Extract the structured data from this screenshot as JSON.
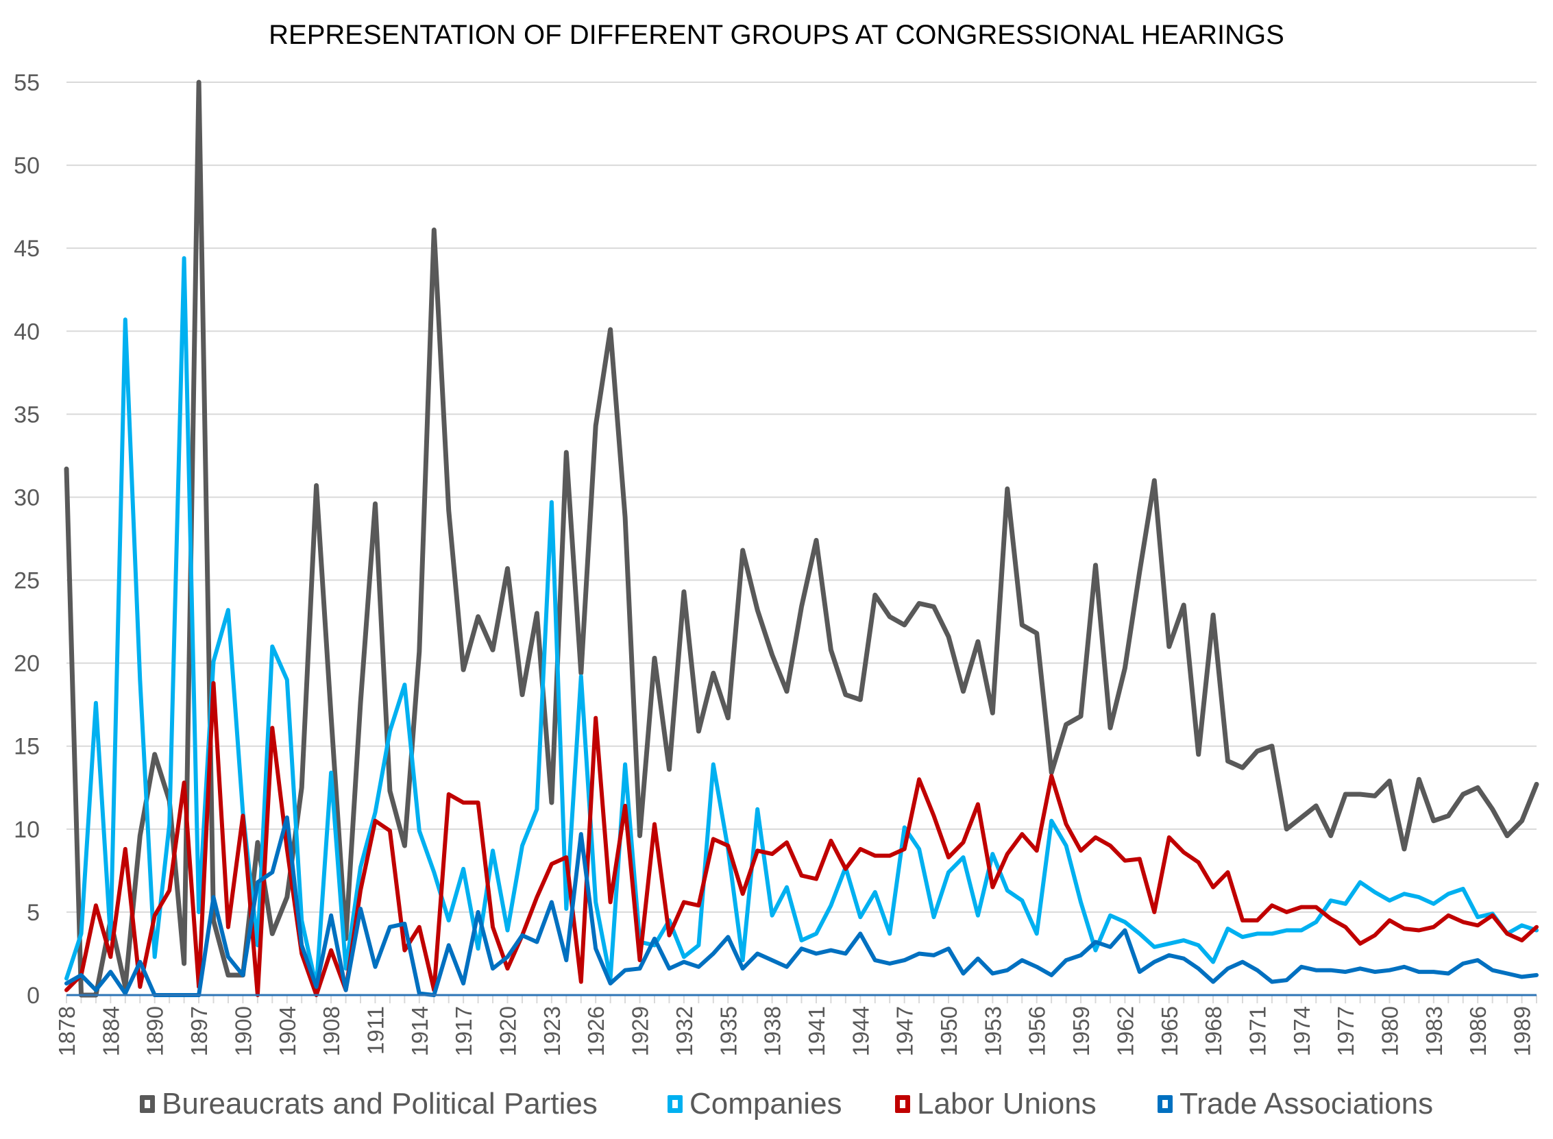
{
  "chart_data": {
    "type": "line",
    "title": "REPRESENTATION OF DIFFERENT GROUPS AT CONGRESSIONAL HEARINGS",
    "xlabel": "",
    "ylabel": "",
    "ylim": [
      0,
      55
    ],
    "y_ticks": [
      0,
      5,
      10,
      15,
      20,
      25,
      30,
      35,
      40,
      45,
      50,
      55
    ],
    "grid": true,
    "legend_position": "bottom",
    "x_tick_labels": [
      "1878",
      "1884",
      "1890",
      "1897",
      "1900",
      "1904",
      "1908",
      "1911",
      "1914",
      "1917",
      "1920",
      "1923",
      "1926",
      "1929",
      "1932",
      "1935",
      "1938",
      "1941",
      "1944",
      "1947",
      "1950",
      "1953",
      "1956",
      "1959",
      "1962",
      "1965",
      "1968",
      "1971",
      "1974",
      "1977",
      "1980",
      "1983",
      "1986",
      "1989"
    ],
    "series": [
      {
        "name": "Bureaucrats and Political Parties",
        "color": "#595959",
        "values": [
          31.7,
          0,
          0,
          4.5,
          0.5,
          9.6,
          14.5,
          11.7,
          1.9,
          55,
          4.5,
          1.2,
          1.2,
          9.2,
          3.7,
          5.9,
          12.5,
          30.7,
          16.8,
          3.4,
          17.6,
          29.6,
          12.3,
          9.0,
          20.7,
          46.1,
          29.2,
          19.6,
          22.8,
          20.8,
          25.7,
          18.1,
          23.0,
          11.6,
          32.7,
          19.4,
          34.3,
          40.1,
          28.8,
          9.6,
          20.3,
          13.6,
          24.3,
          15.9,
          19.4,
          16.7,
          26.8,
          23.2,
          20.5,
          18.3,
          23.4,
          27.4,
          20.8,
          18.1,
          17.8,
          24.1,
          22.8,
          22.3,
          23.6,
          23.4,
          21.6,
          18.3,
          21.3,
          17.0,
          30.5,
          22.3,
          21.8,
          13.4,
          16.3,
          16.8,
          25.9,
          16.1,
          19.7,
          25.5,
          31.0,
          21.0,
          23.5,
          14.5,
          22.9,
          14.1,
          13.7,
          14.7,
          15.0,
          10.0,
          10.7,
          11.4,
          9.6,
          12.1,
          12.1,
          12.0,
          12.9,
          8.8,
          13.0,
          10.5,
          10.8,
          12.1,
          12.5,
          11.2,
          9.6,
          10.5,
          12.7
        ]
      },
      {
        "name": "Companies",
        "color": "#00B0F0",
        "values": [
          1.0,
          3.7,
          17.6,
          3.4,
          40.7,
          19.0,
          2.3,
          10.3,
          44.4,
          5.0,
          20.1,
          23.2,
          11.0,
          3.0,
          21.0,
          19.0,
          4.5,
          0.5,
          13.4,
          1.6,
          7.7,
          11.0,
          15.9,
          18.7,
          9.9,
          7.4,
          4.5,
          7.6,
          2.8,
          8.7,
          3.9,
          9.0,
          11.2,
          29.7,
          5.2,
          19.2,
          5.6,
          1.0,
          13.9,
          3.2,
          3.0,
          4.5,
          2.3,
          3.0,
          13.9,
          8.8,
          2.1,
          11.2,
          4.8,
          6.5,
          3.3,
          3.7,
          5.4,
          7.7,
          4.7,
          6.2,
          3.7,
          10.1,
          8.8,
          4.7,
          7.4,
          8.3,
          4.8,
          8.5,
          6.3,
          5.7,
          3.7,
          10.5,
          9.0,
          5.6,
          2.7,
          4.8,
          4.4,
          3.7,
          2.9,
          3.1,
          3.3,
          3.0,
          2.0,
          4.0,
          3.5,
          3.7,
          3.7,
          3.9,
          3.9,
          4.4,
          5.7,
          5.5,
          6.8,
          6.2,
          5.7,
          6.1,
          5.9,
          5.5,
          6.1,
          6.4,
          4.7,
          4.9,
          3.7,
          4.2,
          3.9
        ]
      },
      {
        "name": "Labor Unions",
        "color": "#C00000",
        "values": [
          0.3,
          1.2,
          5.4,
          2.3,
          8.8,
          0.5,
          4.8,
          6.3,
          12.8,
          0.5,
          18.8,
          4.1,
          10.8,
          0,
          16.1,
          8.8,
          2.5,
          0,
          2.7,
          0.3,
          6.3,
          10.5,
          9.9,
          2.7,
          4.1,
          0.3,
          12.1,
          11.6,
          11.6,
          4.1,
          1.6,
          3.6,
          5.9,
          7.9,
          8.3,
          0.8,
          16.7,
          5.6,
          11.4,
          2.1,
          10.3,
          3.6,
          5.6,
          5.4,
          9.4,
          9.0,
          6.1,
          8.7,
          8.5,
          9.2,
          7.2,
          7.0,
          9.3,
          7.6,
          8.8,
          8.4,
          8.4,
          8.8,
          13.0,
          10.8,
          8.3,
          9.2,
          11.5,
          6.5,
          8.5,
          9.7,
          8.7,
          13.2,
          10.3,
          8.7,
          9.5,
          9.0,
          8.1,
          8.2,
          5.0,
          9.5,
          8.6,
          8.0,
          6.5,
          7.4,
          4.5,
          4.5,
          5.4,
          5.0,
          5.3,
          5.3,
          4.6,
          4.1,
          3.1,
          3.6,
          4.5,
          4.0,
          3.9,
          4.1,
          4.8,
          4.4,
          4.2,
          4.8,
          3.7,
          3.3,
          4.1
        ]
      },
      {
        "name": "Trade Associations",
        "color": "#0070C0",
        "values": [
          0.7,
          1.2,
          0.3,
          1.4,
          0.1,
          2.0,
          0,
          0,
          0,
          0,
          5.9,
          2.3,
          1.2,
          6.8,
          7.4,
          10.7,
          3.0,
          0.5,
          4.8,
          0.3,
          5.2,
          1.7,
          4.1,
          4.3,
          0.1,
          0,
          3.0,
          0.7,
          5.0,
          1.6,
          2.3,
          3.6,
          3.2,
          5.6,
          2.1,
          9.7,
          2.8,
          0.7,
          1.5,
          1.6,
          3.4,
          1.6,
          2.0,
          1.7,
          2.5,
          3.5,
          1.6,
          2.5,
          2.1,
          1.7,
          2.8,
          2.5,
          2.7,
          2.5,
          3.7,
          2.1,
          1.9,
          2.1,
          2.5,
          2.4,
          2.8,
          1.3,
          2.2,
          1.3,
          1.5,
          2.1,
          1.7,
          1.2,
          2.1,
          2.4,
          3.2,
          2.9,
          3.9,
          1.4,
          2.0,
          2.4,
          2.2,
          1.6,
          0.8,
          1.6,
          2.0,
          1.5,
          0.8,
          0.9,
          1.7,
          1.5,
          1.5,
          1.4,
          1.6,
          1.4,
          1.5,
          1.7,
          1.4,
          1.4,
          1.3,
          1.9,
          2.1,
          1.5,
          1.3,
          1.1,
          1.2
        ]
      }
    ]
  }
}
